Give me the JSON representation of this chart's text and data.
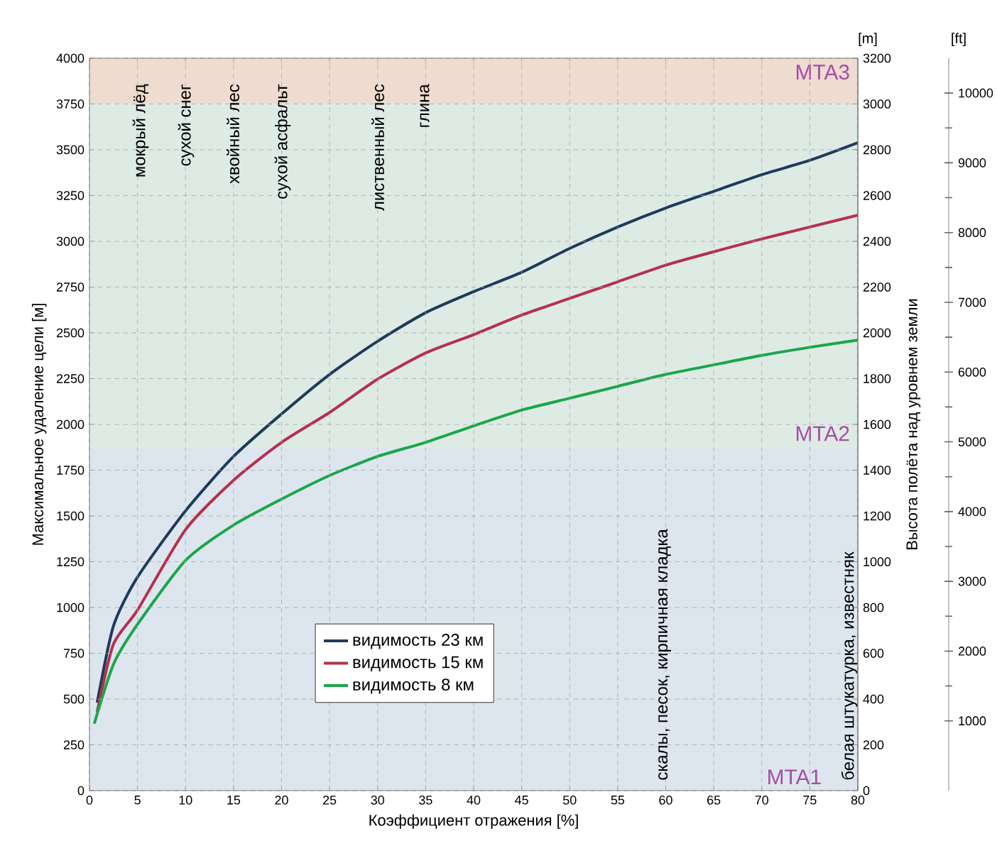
{
  "chart_data": {
    "type": "line",
    "xlabel": "Коэффициент отражения [%]",
    "ylabel": "Максимальное удаление цели [м]",
    "y2label": "Высота полёта над уровнем земли",
    "xlim": [
      0,
      80
    ],
    "ylim": [
      0,
      4000
    ],
    "y2lim": [
      0,
      3200
    ],
    "y3lim": [
      0,
      10500
    ],
    "xticks": [
      0,
      5,
      10,
      15,
      20,
      25,
      30,
      35,
      40,
      45,
      50,
      55,
      60,
      65,
      70,
      75,
      80
    ],
    "yticks": [
      0,
      250,
      500,
      750,
      1000,
      1250,
      1500,
      1750,
      2000,
      2250,
      2500,
      2750,
      3000,
      3250,
      3500,
      3750,
      4000
    ],
    "y2ticks": [
      0,
      200,
      400,
      600,
      800,
      1000,
      1200,
      1400,
      1600,
      1800,
      2000,
      2200,
      2400,
      2600,
      2800,
      3000,
      3200
    ],
    "y3ticks": [
      1000,
      2000,
      3000,
      4000,
      5000,
      6000,
      7000,
      8000,
      9000,
      10000
    ],
    "grid": true,
    "legend": "bottom",
    "marker": "none",
    "line_style": "solid",
    "x": [
      0.8,
      2.5,
      5,
      10,
      15,
      20,
      25,
      30,
      35,
      40,
      45,
      50,
      55,
      60,
      65,
      70,
      75,
      80
    ],
    "series": [
      {
        "name": "видимость 23 км",
        "color": "#1f3a5a",
        "values": [
          480,
          900,
          1166,
          1528,
          1825,
          2057,
          2273,
          2454,
          2610,
          2725,
          2831,
          2961,
          3078,
          3182,
          3273,
          3364,
          3442,
          3538
        ]
      },
      {
        "name": "видимость 15 км",
        "color": "#b5304f",
        "values": [
          430,
          800,
          986,
          1425,
          1695,
          1902,
          2065,
          2247,
          2390,
          2490,
          2597,
          2688,
          2779,
          2870,
          2943,
          3013,
          3078,
          3143
        ]
      },
      {
        "name": "видимость 8 км",
        "color": "#1aa64a",
        "x": [
          0.5,
          2.5,
          5,
          10,
          15,
          20,
          25,
          30,
          35,
          40,
          45,
          50,
          55,
          60,
          65,
          70,
          75,
          80
        ],
        "values": [
          366,
          690,
          908,
          1257,
          1450,
          1592,
          1721,
          1825,
          1902,
          1992,
          2078,
          2143,
          2208,
          2273,
          2325,
          2377,
          2421,
          2460
        ]
      }
    ],
    "bands": [
      {
        "axis": "y",
        "from": 0,
        "to": 1875,
        "label": "MTA1",
        "color": "#dde6ee"
      },
      {
        "axis": "y",
        "from": 1875,
        "to": 3750,
        "label": "MTA2",
        "color": "#deebe5"
      },
      {
        "axis": "y",
        "from": 3750,
        "to": 4000,
        "label": "MTA3",
        "color": "#eddccf"
      }
    ],
    "annotations": [
      "[m]",
      "[ft]",
      "мокрый лёд",
      "сухой снег",
      "хвойный лес",
      "сухой асфальт",
      "лиственный лес",
      "глина",
      "скалы, песок, кирпичная кладка",
      "белая штукатурка, известняк"
    ]
  }
}
